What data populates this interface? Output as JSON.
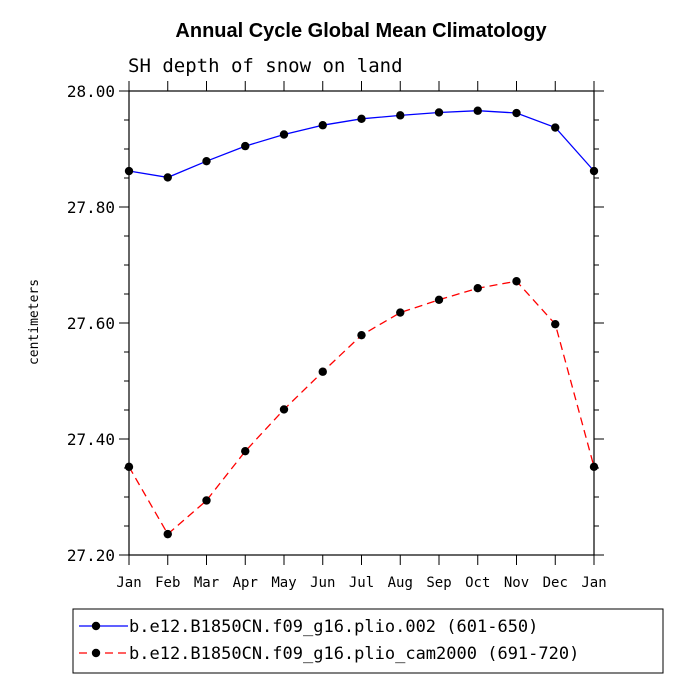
{
  "chart_data": {
    "type": "line",
    "title": "Annual Cycle Global Mean Climatology",
    "subtitle": "SH depth of snow on land",
    "xlabel": "",
    "ylabel": "centimeters",
    "ylim": [
      27.2,
      28.0
    ],
    "yticks": [
      "28.00",
      "27.80",
      "27.60",
      "27.40",
      "27.20"
    ],
    "ytick_values": [
      28.0,
      27.8,
      27.6,
      27.4,
      27.2
    ],
    "categories": [
      "Jan",
      "Feb",
      "Mar",
      "Apr",
      "May",
      "Jun",
      "Jul",
      "Aug",
      "Sep",
      "Oct",
      "Nov",
      "Dec",
      "Jan"
    ],
    "series": [
      {
        "name": "b.e12.B1850CN.f09_g16.plio.002 (601-650)",
        "color": "#0000ff",
        "dashed": false,
        "values": [
          27.862,
          27.851,
          27.879,
          27.905,
          27.925,
          27.941,
          27.952,
          27.958,
          27.963,
          27.966,
          27.962,
          27.937,
          27.862
        ]
      },
      {
        "name": "b.e12.B1850CN.f09_g16.plio_cam2000 (691-720)",
        "color": "#ff0000",
        "dashed": true,
        "values": [
          27.352,
          27.236,
          27.294,
          27.379,
          27.451,
          27.516,
          27.579,
          27.618,
          27.64,
          27.66,
          27.672,
          27.598,
          27.352
        ]
      }
    ],
    "legend_position": "bottom"
  }
}
